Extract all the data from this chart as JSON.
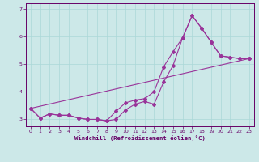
{
  "xlabel": "Windchill (Refroidissement éolien,°C)",
  "bg_color": "#cce8e8",
  "line_color": "#993399",
  "grid_color": "#aad8d8",
  "tick_color": "#660066",
  "spine_color": "#660066",
  "xlim": [
    -0.5,
    23.5
  ],
  "ylim": [
    2.75,
    7.2
  ],
  "yticks": [
    3,
    4,
    5,
    6,
    7
  ],
  "xticks": [
    0,
    1,
    2,
    3,
    4,
    5,
    6,
    7,
    8,
    9,
    10,
    11,
    12,
    13,
    14,
    15,
    16,
    17,
    18,
    19,
    20,
    21,
    22,
    23
  ],
  "line1_x": [
    0,
    1,
    2,
    3,
    4,
    5,
    6,
    7,
    8,
    9,
    10,
    11,
    12,
    13,
    14,
    15,
    16,
    17,
    18,
    19,
    20,
    21,
    22,
    23
  ],
  "line1_y": [
    3.4,
    3.05,
    3.2,
    3.15,
    3.15,
    3.05,
    3.0,
    3.0,
    2.95,
    3.3,
    3.6,
    3.7,
    3.75,
    4.0,
    4.9,
    5.45,
    5.95,
    6.75,
    6.3,
    5.8,
    5.3,
    5.25,
    5.2,
    5.2
  ],
  "line2_x": [
    0,
    1,
    2,
    3,
    4,
    5,
    6,
    7,
    8,
    9,
    10,
    11,
    12,
    13,
    14,
    15,
    16,
    17,
    18,
    19,
    20,
    21,
    22,
    23
  ],
  "line2_y": [
    3.4,
    3.05,
    3.2,
    3.15,
    3.15,
    3.05,
    3.0,
    3.0,
    2.95,
    3.0,
    3.35,
    3.55,
    3.65,
    3.55,
    4.35,
    4.95,
    5.95,
    6.75,
    6.3,
    5.8,
    5.3,
    5.25,
    5.2,
    5.2
  ],
  "line3_x": [
    0,
    23
  ],
  "line3_y": [
    3.4,
    5.2
  ]
}
